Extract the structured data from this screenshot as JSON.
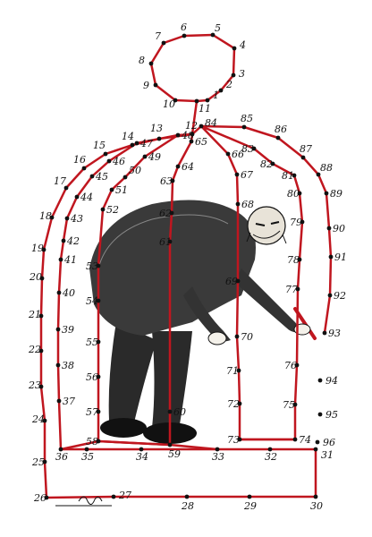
{
  "colors": {
    "line": "#c0161f",
    "ink": "#111111",
    "paper": "#ffffff"
  },
  "cage_outline": {
    "unconnected_numbers": [
      "94",
      "95",
      "96"
    ]
  },
  "signature": {
    "text": "Mana"
  },
  "points": [
    {
      "n": "1"
    },
    {
      "n": "2"
    },
    {
      "n": "3"
    },
    {
      "n": "4"
    },
    {
      "n": "5"
    },
    {
      "n": "6"
    },
    {
      "n": "7"
    },
    {
      "n": "8"
    },
    {
      "n": "9"
    },
    {
      "n": "10"
    },
    {
      "n": "11"
    },
    {
      "n": "12"
    },
    {
      "n": "13"
    },
    {
      "n": "14"
    },
    {
      "n": "15"
    },
    {
      "n": "16"
    },
    {
      "n": "17"
    },
    {
      "n": "18"
    },
    {
      "n": "19"
    },
    {
      "n": "20"
    },
    {
      "n": "21"
    },
    {
      "n": "22"
    },
    {
      "n": "23"
    },
    {
      "n": "24"
    },
    {
      "n": "25"
    },
    {
      "n": "26"
    },
    {
      "n": "27"
    },
    {
      "n": "28"
    },
    {
      "n": "29"
    },
    {
      "n": "30"
    },
    {
      "n": "31"
    },
    {
      "n": "32"
    },
    {
      "n": "33"
    },
    {
      "n": "34"
    },
    {
      "n": "35"
    },
    {
      "n": "36"
    },
    {
      "n": "37"
    },
    {
      "n": "38"
    },
    {
      "n": "39"
    },
    {
      "n": "40"
    },
    {
      "n": "41"
    },
    {
      "n": "42"
    },
    {
      "n": "43"
    },
    {
      "n": "44"
    },
    {
      "n": "45"
    },
    {
      "n": "46"
    },
    {
      "n": "47"
    },
    {
      "n": "48"
    },
    {
      "n": "49"
    },
    {
      "n": "50"
    },
    {
      "n": "51"
    },
    {
      "n": "52"
    },
    {
      "n": "53"
    },
    {
      "n": "54"
    },
    {
      "n": "55"
    },
    {
      "n": "56"
    },
    {
      "n": "57"
    },
    {
      "n": "58"
    },
    {
      "n": "59"
    },
    {
      "n": "60"
    },
    {
      "n": "61"
    },
    {
      "n": "62"
    },
    {
      "n": "63"
    },
    {
      "n": "64"
    },
    {
      "n": "65"
    },
    {
      "n": "66"
    },
    {
      "n": "67"
    },
    {
      "n": "68"
    },
    {
      "n": "69"
    },
    {
      "n": "70"
    },
    {
      "n": "71"
    },
    {
      "n": "72"
    },
    {
      "n": "73"
    },
    {
      "n": "74"
    },
    {
      "n": "75"
    },
    {
      "n": "76"
    },
    {
      "n": "77"
    },
    {
      "n": "78"
    },
    {
      "n": "79"
    },
    {
      "n": "80"
    },
    {
      "n": "81"
    },
    {
      "n": "82"
    },
    {
      "n": "83"
    },
    {
      "n": "84"
    },
    {
      "n": "85"
    },
    {
      "n": "86"
    },
    {
      "n": "87"
    },
    {
      "n": "88"
    },
    {
      "n": "89"
    },
    {
      "n": "90"
    },
    {
      "n": "91"
    },
    {
      "n": "92"
    },
    {
      "n": "93"
    },
    {
      "n": "94"
    },
    {
      "n": "95"
    },
    {
      "n": "96"
    }
  ]
}
